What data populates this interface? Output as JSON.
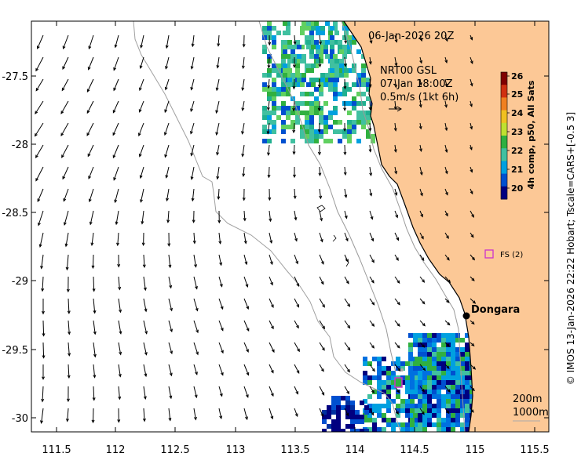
{
  "map": {
    "timestamp": "06-Jan-2026 20Z",
    "current_model": {
      "name": "NRT00 GSL",
      "time": "07-Jan 18:00Z",
      "scale_label": "0.5m/s (1kt 6h)"
    },
    "place_label": "Dongara",
    "station_label": "FS (2)",
    "isobaths": [
      "200m",
      "1000m"
    ],
    "credit": "© IMOS 13-Jan-2026 22:22 Hobart; Tscale=CARS+[-0.5 3]",
    "lon_ticks": [
      "111.5",
      "112",
      "112.5",
      "113",
      "113.5",
      "114",
      "114.5",
      "115",
      "115.5"
    ],
    "lat_ticks": [
      "-27.5",
      "-28",
      "-28.5",
      "-29",
      "-29.5",
      "-30"
    ],
    "colorbar": {
      "title": "4h comp, p50, All Sats",
      "ticks": [
        "20",
        "21",
        "22",
        "23",
        "24",
        "25",
        "26"
      ],
      "colors": [
        "#000080",
        "#0050d0",
        "#00a0e0",
        "#40c0a0",
        "#30b040",
        "#c0e030",
        "#f0c020",
        "#f08020",
        "#d03010",
        "#800000"
      ]
    },
    "land_color": "#fcc896",
    "station_color": "#cc33cc"
  }
}
